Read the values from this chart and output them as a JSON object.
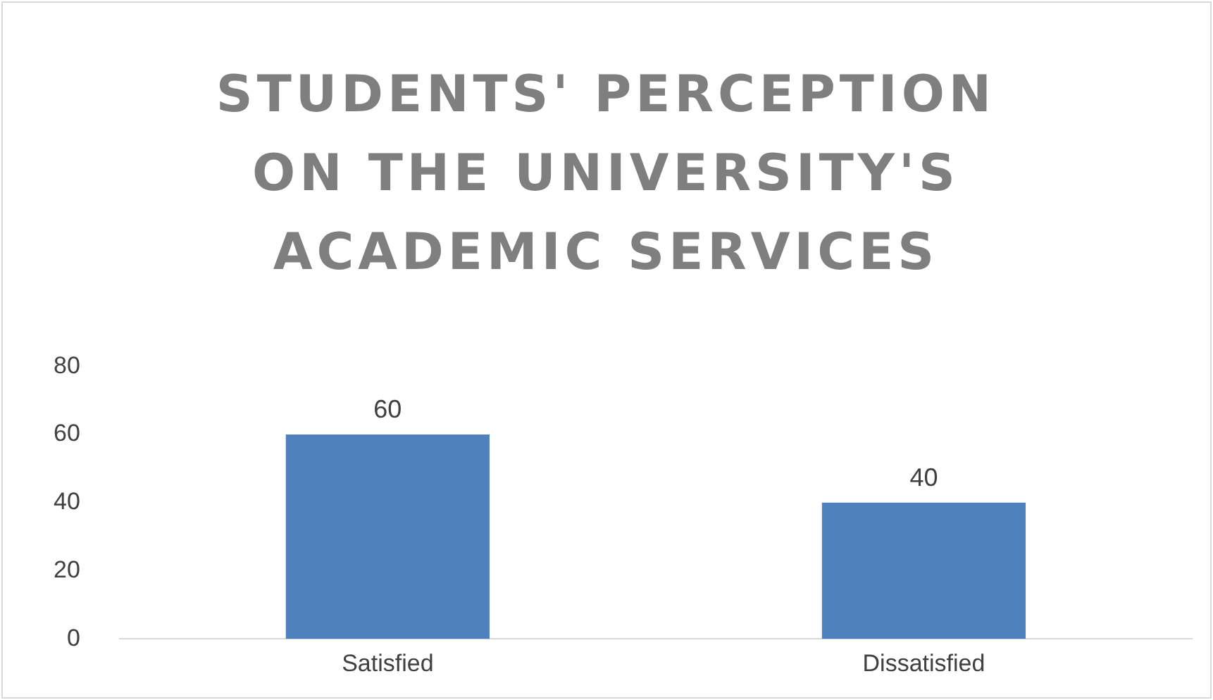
{
  "chart_data": {
    "type": "bar",
    "title": "STUDENTS' PERCEPTION ON THE UNIVERSITY'S ACADEMIC SERVICES",
    "categories": [
      "Satisfied",
      "Dissatisfied"
    ],
    "values": [
      60,
      40
    ],
    "color": "#4f81bd",
    "ylim": [
      0,
      80
    ],
    "yticks": [
      0,
      20,
      40,
      60,
      80
    ],
    "data_labels": true,
    "legend": false
  }
}
